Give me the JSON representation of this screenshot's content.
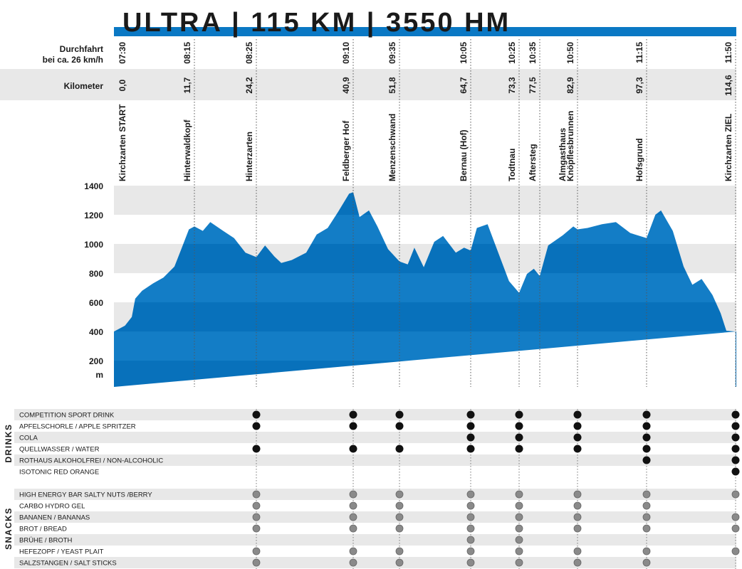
{
  "title": "ULTRA | 115 KM | 3550 HM",
  "row_labels": {
    "time": [
      "Durchfahrt",
      "bei ca. 26 km/h"
    ],
    "km": "Kilometer"
  },
  "stations": [
    {
      "time": "07:30",
      "km": {
        "value": 0,
        "label": "0,0"
      },
      "name": [
        "Kirchzarten START"
      ]
    },
    {
      "time": "08:15",
      "km": {
        "value": 11.7,
        "label": "11,7"
      },
      "name": [
        "Hinterwaldkopf"
      ]
    },
    {
      "time": "08:25",
      "km": {
        "value": 24.2,
        "label": "24,2"
      },
      "name": [
        "Hinterzarten"
      ]
    },
    {
      "time": "09:10",
      "km": {
        "value": 40.9,
        "label": "40,9"
      },
      "name": [
        "Feldberger Hof"
      ]
    },
    {
      "time": "09:35",
      "km": {
        "value": 51.8,
        "label": "51,8"
      },
      "name": [
        "Menzenschwand"
      ]
    },
    {
      "time": "10:05",
      "km": {
        "value": 64.7,
        "label": "64,7"
      },
      "name": [
        "Bernau  (Hof)"
      ]
    },
    {
      "time": "10:25",
      "km": {
        "value": 73.3,
        "label": "73,3"
      },
      "name": [
        "Todtnau"
      ]
    },
    {
      "time": "10:35",
      "km": {
        "value": 77.5,
        "label": "77,5"
      },
      "name": [
        "Aftersteg"
      ]
    },
    {
      "time": "10:50",
      "km": {
        "value": 82.9,
        "label": "82,9"
      },
      "name": [
        "Almgasthaus",
        "Knöpflesbrunnen"
      ]
    },
    {
      "time": "11:15",
      "km": {
        "value": 97.3,
        "label": "97,3"
      },
      "name": [
        "Hofsgrund"
      ]
    },
    {
      "time": "11:50",
      "km": {
        "value": 114.6,
        "label": "114,6"
      },
      "name": [
        "Kirchzarten ZIEL"
      ]
    }
  ],
  "chart_data": {
    "type": "area",
    "color": "#0a78c4",
    "x": [
      0,
      1.6,
      2.6,
      3.1,
      4.1,
      5.7,
      7.2,
      8.8,
      9.8,
      10.9,
      11.7,
      13.4,
      14.9,
      17.5,
      19.7,
      22.0,
      24.2,
      25.7,
      27.3,
      28.5,
      30.3,
      32.8,
      34.6,
      36.5,
      38.3,
      40.2,
      40.9,
      42.4,
      44.6,
      46.6,
      49.1,
      51.8,
      53.3,
      54.5,
      56.2,
      58.1,
      59.7,
      62.0,
      63.5,
      64.7,
      65.8,
      67.7,
      69.6,
      71.5,
      73.3,
      74.9,
      76.3,
      77.5,
      78.7,
      80.8,
      82.3,
      82.9,
      85.0,
      88.0,
      90.9,
      93.9,
      97.3,
      99.0,
      100.1,
      102.4,
      104.5,
      106.2,
      108.0,
      110.1,
      111.7,
      112.8,
      114.6
    ],
    "values": [
      400,
      440,
      500,
      625,
      680,
      730,
      770,
      845,
      965,
      1100,
      1120,
      1090,
      1150,
      1090,
      1040,
      940,
      910,
      990,
      915,
      870,
      890,
      940,
      1065,
      1110,
      1220,
      1345,
      1355,
      1185,
      1230,
      1120,
      965,
      880,
      860,
      975,
      840,
      1015,
      1055,
      940,
      975,
      955,
      1110,
      1135,
      940,
      745,
      665,
      795,
      830,
      780,
      990,
      1060,
      1120,
      1100,
      1110,
      1135,
      1150,
      1075,
      1040,
      1200,
      1230,
      1090,
      845,
      720,
      760,
      650,
      525,
      405,
      400
    ],
    "ylim": [
      20,
      1400
    ],
    "yticks": [
      200,
      400,
      600,
      800,
      1000,
      1200,
      1400
    ],
    "y_unit": "m"
  },
  "drinks": {
    "title": "DRINKS",
    "rows": [
      {
        "label": " COMPETITION SPORT DRINK",
        "available": [
          false,
          false,
          true,
          true,
          true,
          true,
          true,
          false,
          true,
          true,
          true
        ]
      },
      {
        "label": "APFELSCHORLE / APPLE SPRITZER",
        "available": [
          false,
          false,
          true,
          true,
          true,
          true,
          true,
          false,
          true,
          true,
          true
        ]
      },
      {
        "label": "COLA",
        "available": [
          false,
          false,
          false,
          false,
          false,
          true,
          true,
          false,
          true,
          true,
          true
        ]
      },
      {
        "label": "QUELLWASSER / WATER",
        "available": [
          false,
          false,
          true,
          true,
          true,
          true,
          true,
          false,
          true,
          true,
          true
        ]
      },
      {
        "label": "ROTHAUS ALKOHOLFREI / NON-ALCOHOLIC",
        "available": [
          false,
          false,
          false,
          false,
          false,
          false,
          false,
          false,
          false,
          true,
          true
        ]
      },
      {
        "label": "ISOTONIC RED ORANGE",
        "available": [
          false,
          false,
          false,
          false,
          false,
          false,
          false,
          false,
          false,
          false,
          true
        ]
      }
    ]
  },
  "snacks": {
    "title": "SNACKS",
    "rows": [
      {
        "label": "HIGH ENERGY BAR SALTY NUTS /BERRY",
        "available": [
          false,
          false,
          true,
          true,
          true,
          true,
          true,
          false,
          true,
          true,
          true
        ]
      },
      {
        "label": "CARBO HYDRO GEL",
        "available": [
          false,
          false,
          true,
          true,
          true,
          true,
          true,
          false,
          true,
          true,
          false
        ]
      },
      {
        "label": "BANANEN / BANANAS",
        "available": [
          false,
          false,
          true,
          true,
          true,
          true,
          true,
          false,
          true,
          true,
          true
        ]
      },
      {
        "label": "BROT / BREAD",
        "available": [
          false,
          false,
          true,
          true,
          true,
          true,
          true,
          false,
          true,
          true,
          true
        ]
      },
      {
        "label": "BRÜHE / BROTH",
        "available": [
          false,
          false,
          false,
          false,
          false,
          true,
          true,
          false,
          false,
          false,
          false
        ]
      },
      {
        "label": "HEFEZOPF / YEAST PLAIT",
        "available": [
          false,
          false,
          true,
          true,
          true,
          true,
          true,
          false,
          true,
          true,
          true
        ]
      },
      {
        "label": "SALZSTANGEN / SALT STICKS",
        "available": [
          false,
          false,
          true,
          true,
          true,
          true,
          true,
          false,
          true,
          true,
          false
        ]
      }
    ]
  }
}
